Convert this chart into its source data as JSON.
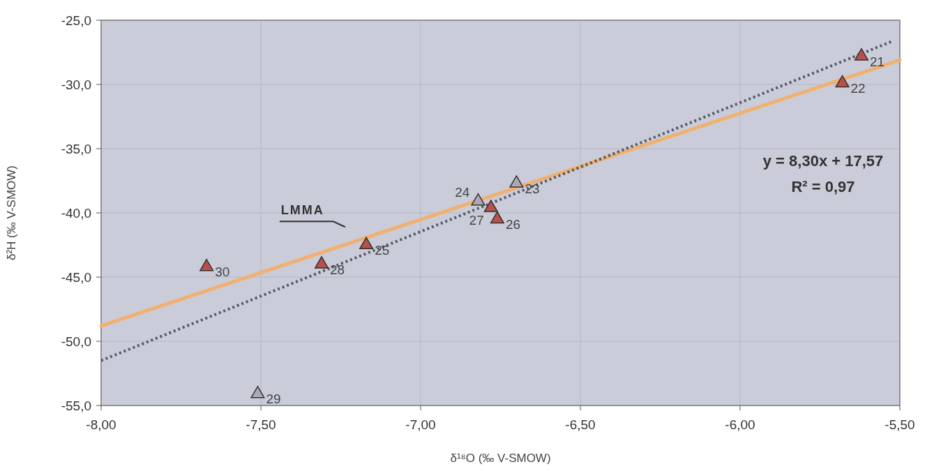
{
  "chart_data": {
    "type": "scatter",
    "xlabel": "δ¹⁸O (‰ V-SMOW)",
    "ylabel": "δ²H (‰ V-SMOW)",
    "xlim": [
      -8,
      -5.5
    ],
    "ylim": [
      -55,
      -25
    ],
    "xticks": [
      {
        "value": -8,
        "label": "-8,00"
      },
      {
        "value": -7.5,
        "label": "-7,50"
      },
      {
        "value": -7,
        "label": "-7,00"
      },
      {
        "value": -6.5,
        "label": "-6,50"
      },
      {
        "value": -6,
        "label": "-6,00"
      },
      {
        "value": -5.5,
        "label": "-5,50"
      }
    ],
    "yticks": [
      {
        "value": -55,
        "label": "-55,0"
      },
      {
        "value": -50,
        "label": "-50,0"
      },
      {
        "value": -45,
        "label": "-45,0"
      },
      {
        "value": -40,
        "label": "-40,0"
      },
      {
        "value": -35,
        "label": "-35,0"
      },
      {
        "value": -30,
        "label": "-30,0"
      },
      {
        "value": -25,
        "label": "-25,0"
      }
    ],
    "grid": true,
    "annotations": [
      "y = 8,30x + 17,57",
      "R² = 0,97",
      {
        "text": "21",
        "x": -5.62,
        "y": -27.8
      },
      {
        "text": "22",
        "x": -5.68,
        "y": -29.9
      },
      {
        "text": "23",
        "x": -6.7,
        "y": -37.7
      },
      {
        "text": "24",
        "x": -6.82,
        "y": -39.1
      },
      {
        "text": "25",
        "x": -7.17,
        "y": -42.5
      },
      {
        "text": "26",
        "x": -6.76,
        "y": -40.5
      },
      {
        "text": "27",
        "x": -6.78,
        "y": -39.6
      },
      {
        "text": "28",
        "x": -7.31,
        "y": -44.0
      },
      {
        "text": "29",
        "x": -7.51,
        "y": -54.1
      },
      {
        "text": "30",
        "x": -7.67,
        "y": -44.2
      }
    ],
    "series": [
      {
        "type": "line",
        "name": "LMMA",
        "color": "#f0b070",
        "line_style": "solid",
        "marker": "none",
        "x": [
          -8,
          -5.5
        ],
        "values": [
          -48.8,
          -28.1
        ]
      },
      {
        "type": "line",
        "color": "#555a66",
        "line_style": "dotted",
        "marker": "none",
        "x": [
          -8,
          -5.52
        ],
        "values": [
          -51.5,
          -26.6
        ]
      },
      {
        "marker": "triangle",
        "x": [
          -5.62,
          -5.68,
          -6.7,
          -6.82,
          -7.17,
          -6.76,
          -6.78,
          -7.31,
          -7.51,
          -7.67
        ],
        "values": [
          -27.8,
          -29.9,
          -37.7,
          -39.1,
          -42.5,
          -40.5,
          -39.6,
          -44.0,
          -54.1,
          -44.2
        ],
        "colors": [
          "#b5524a",
          "#b5524a",
          "#a9acb8",
          "#a9acb8",
          "#b5524a",
          "#b5524a",
          "#b5524a",
          "#b5524a",
          "#a9acb8",
          "#b5524a"
        ]
      }
    ]
  }
}
